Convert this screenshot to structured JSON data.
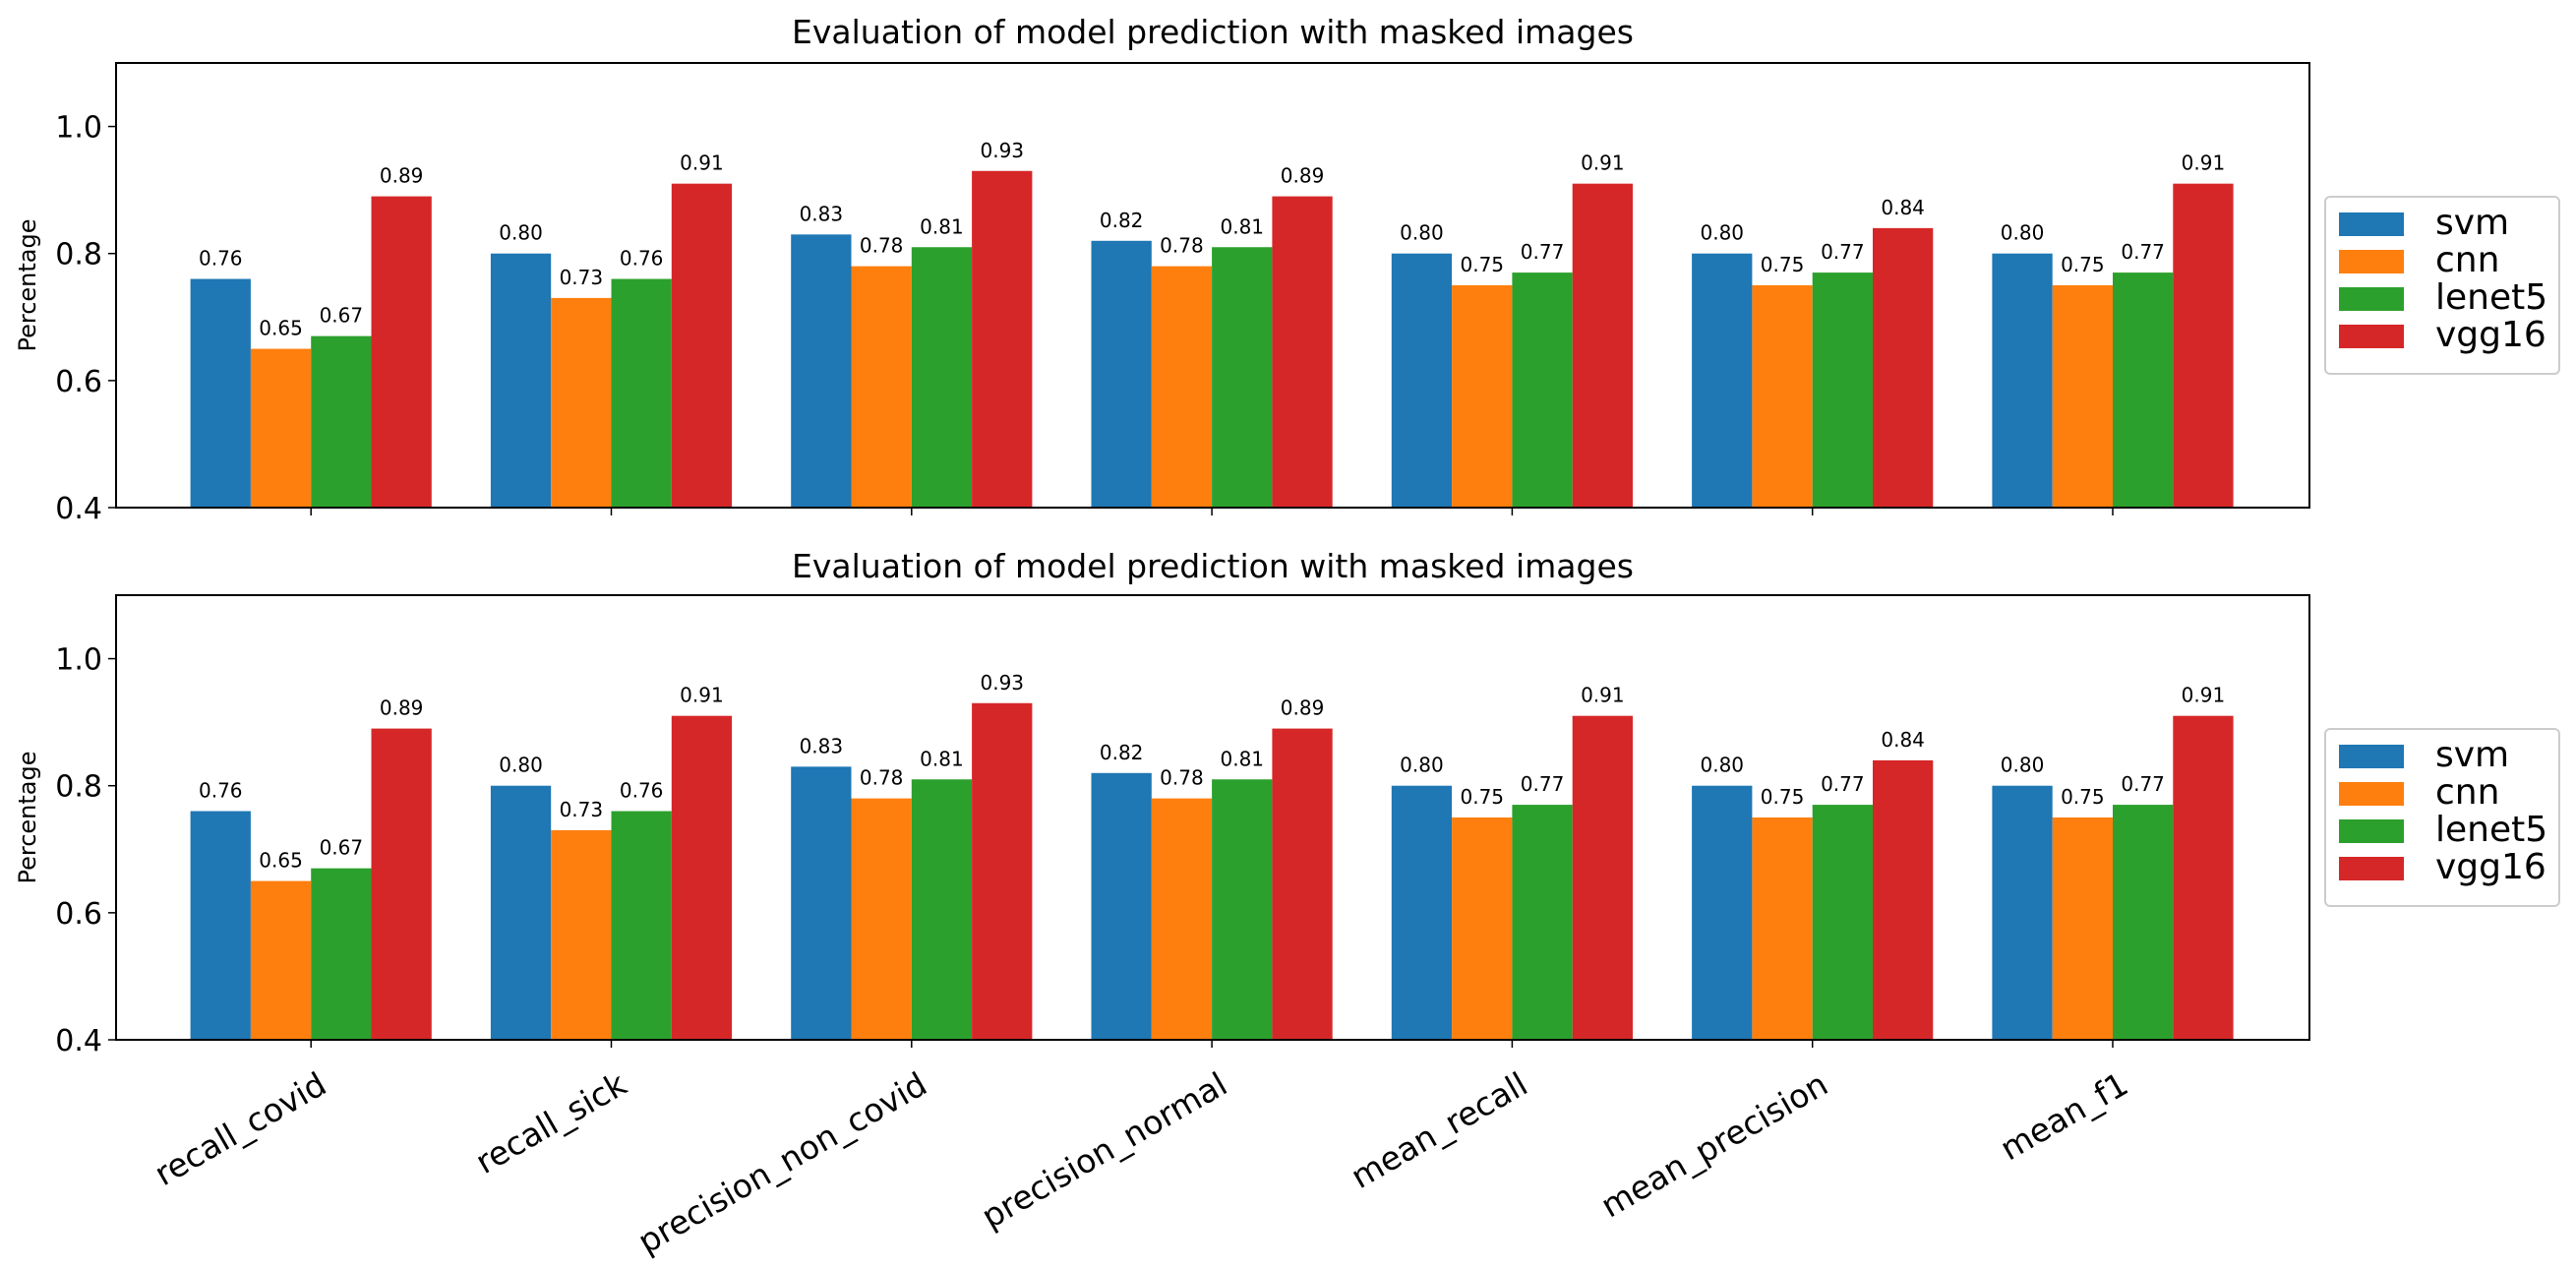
{
  "chart_data": [
    {
      "type": "bar",
      "title": "Evaluation of model prediction with masked images",
      "xlabel": "",
      "ylabel": "Percentage",
      "ylim": [
        0.4,
        1.1
      ],
      "yticks": [
        "0.4",
        "0.6",
        "0.8",
        "1.0"
      ],
      "categories": [
        "recall_covid",
        "recall_sick",
        "precision_non_covid",
        "precision_normal",
        "mean_recall",
        "mean_precision",
        "mean_f1"
      ],
      "show_category_labels": false,
      "legend": "right",
      "grid": false,
      "series": [
        {
          "name": "svm",
          "color": "#1f77b4",
          "values": [
            0.76,
            0.8,
            0.83,
            0.82,
            0.8,
            0.8,
            0.8
          ]
        },
        {
          "name": "cnn",
          "color": "#ff7f0e",
          "values": [
            0.65,
            0.73,
            0.78,
            0.78,
            0.75,
            0.75,
            0.75
          ]
        },
        {
          "name": "lenet5",
          "color": "#2ca02c",
          "values": [
            0.67,
            0.76,
            0.81,
            0.81,
            0.77,
            0.77,
            0.77
          ]
        },
        {
          "name": "vgg16",
          "color": "#d62728",
          "values": [
            0.89,
            0.91,
            0.93,
            0.89,
            0.91,
            0.84,
            0.91
          ]
        }
      ]
    },
    {
      "type": "bar",
      "title": "Evaluation of model prediction with masked images",
      "xlabel": "",
      "ylabel": "Percentage",
      "ylim": [
        0.4,
        1.1
      ],
      "yticks": [
        "0.4",
        "0.6",
        "0.8",
        "1.0"
      ],
      "categories": [
        "recall_covid",
        "recall_sick",
        "precision_non_covid",
        "precision_normal",
        "mean_recall",
        "mean_precision",
        "mean_f1"
      ],
      "show_category_labels": true,
      "legend": "right",
      "grid": false,
      "series": [
        {
          "name": "svm",
          "color": "#1f77b4",
          "values": [
            0.76,
            0.8,
            0.83,
            0.82,
            0.8,
            0.8,
            0.8
          ]
        },
        {
          "name": "cnn",
          "color": "#ff7f0e",
          "values": [
            0.65,
            0.73,
            0.78,
            0.78,
            0.75,
            0.75,
            0.75
          ]
        },
        {
          "name": "lenet5",
          "color": "#2ca02c",
          "values": [
            0.67,
            0.76,
            0.81,
            0.81,
            0.77,
            0.77,
            0.77
          ]
        },
        {
          "name": "vgg16",
          "color": "#d62728",
          "values": [
            0.89,
            0.91,
            0.93,
            0.89,
            0.91,
            0.84,
            0.91
          ]
        }
      ]
    }
  ]
}
